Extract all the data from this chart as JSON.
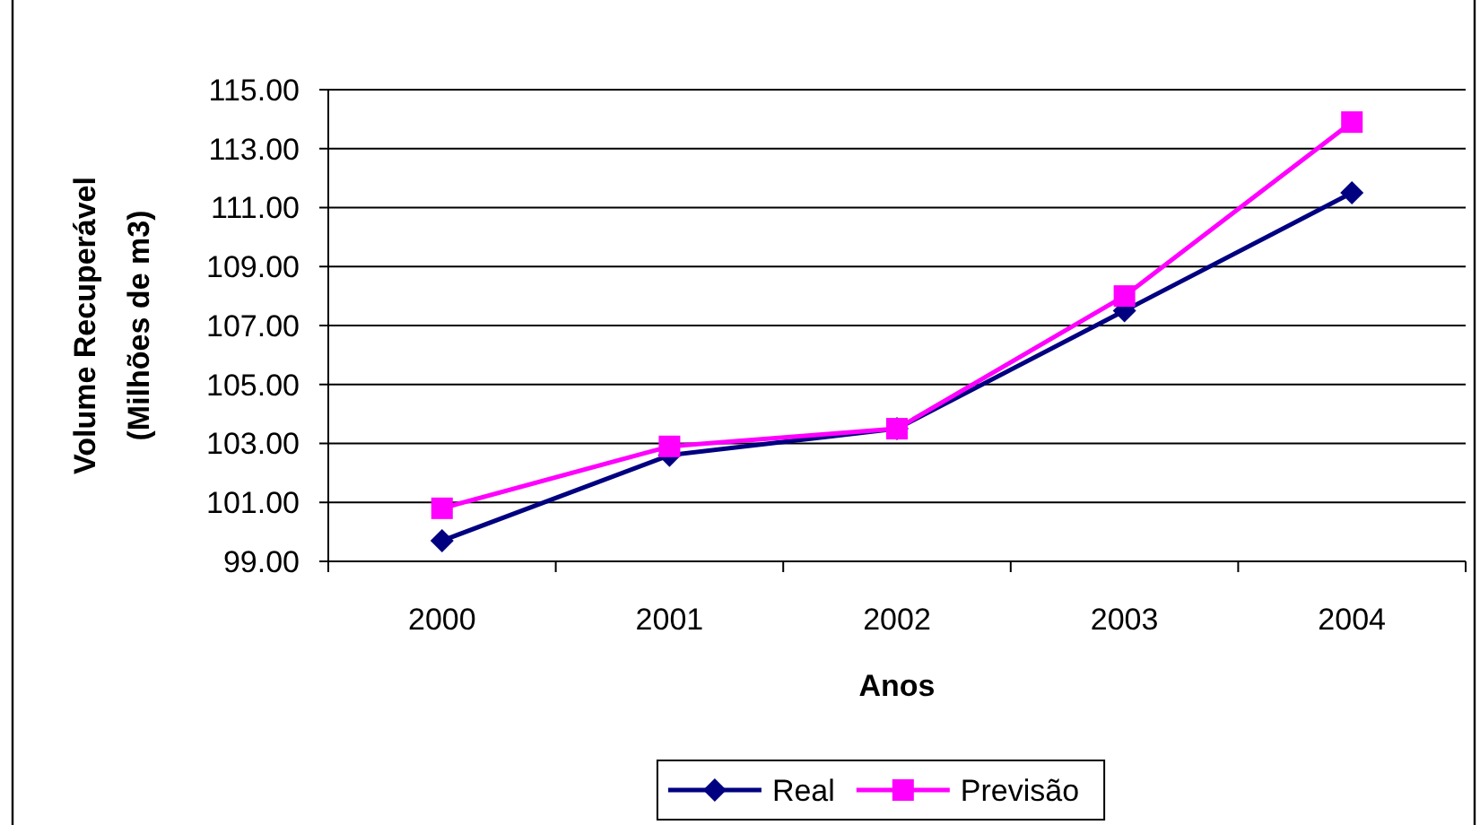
{
  "chart_data": {
    "type": "line",
    "xlabel": "Anos",
    "ylabel": "Volume Recuperável\n(Milhões de m3)",
    "categories": [
      "2000",
      "2001",
      "2002",
      "2003",
      "2004"
    ],
    "series": [
      {
        "name": "Real",
        "color": "#000080",
        "marker": "diamond",
        "values": [
          99.7,
          102.6,
          103.5,
          107.5,
          111.5
        ]
      },
      {
        "name": "Previsão",
        "color": "#ff00ff",
        "marker": "square",
        "values": [
          100.8,
          102.9,
          103.5,
          108.0,
          113.9
        ]
      }
    ],
    "ylim": [
      99,
      115
    ],
    "yticks": [
      {
        "value": 99,
        "label": "99.00"
      },
      {
        "value": 101,
        "label": "101.00"
      },
      {
        "value": 103,
        "label": "103.00"
      },
      {
        "value": 105,
        "label": "105.00"
      },
      {
        "value": 107,
        "label": "107.00"
      },
      {
        "value": 109,
        "label": "109.00"
      },
      {
        "value": 111,
        "label": "111.00"
      },
      {
        "value": 113,
        "label": "113.00"
      },
      {
        "value": 115,
        "label": "115.00"
      }
    ],
    "grid": "y",
    "legend": "bottom",
    "line_style": "solid"
  }
}
